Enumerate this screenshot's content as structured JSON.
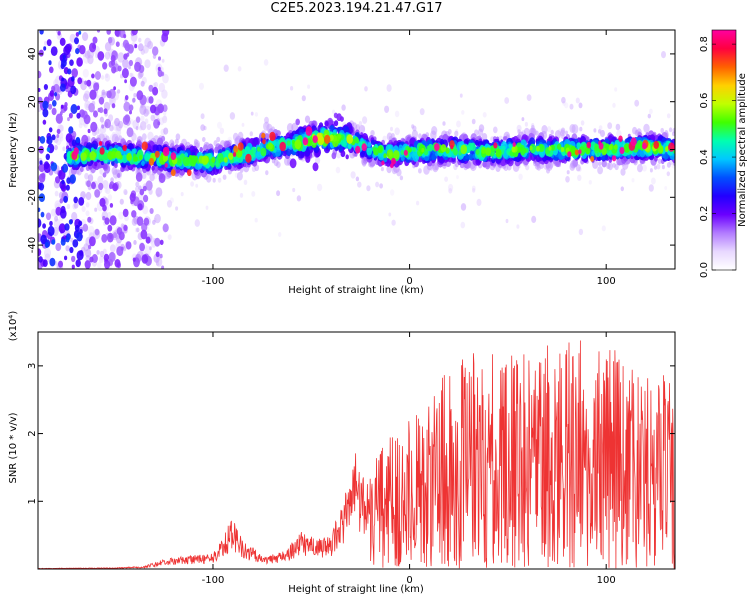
{
  "figure_title": "C2E5.2023.194.21.47.G17",
  "chart_data": [
    {
      "type": "heatmap",
      "panel": "top",
      "xlabel": "Height of straight line (km)",
      "ylabel": "Frequency (Hz)",
      "xlim": [
        -189,
        135
      ],
      "ylim": [
        -50,
        50
      ],
      "x_ticks": [
        -100,
        0,
        100
      ],
      "y_ticks": [
        -40,
        -20,
        0,
        20,
        40
      ],
      "colorbar": {
        "label": "Normalized spectral amplitude",
        "range": [
          0.0,
          0.85
        ],
        "ticks": [
          0.0,
          0.2,
          0.4,
          0.6,
          0.8
        ],
        "colormap": [
          "#ffffff",
          "#e8d8ff",
          "#b27cff",
          "#6a00ff",
          "#2200ff",
          "#0050ff",
          "#00c8ff",
          "#00ffb0",
          "#40ff00",
          "#c0ff00",
          "#ffd000",
          "#ff6000",
          "#ff0040",
          "#ff00a0"
        ]
      },
      "band_center_hz": [
        {
          "x": -185,
          "y": -5
        },
        {
          "x": -170,
          "y": -3
        },
        {
          "x": -160,
          "y": -2
        },
        {
          "x": -140,
          "y": -3
        },
        {
          "x": -120,
          "y": -4
        },
        {
          "x": -100,
          "y": -5
        },
        {
          "x": -90,
          "y": -3
        },
        {
          "x": -80,
          "y": -1
        },
        {
          "x": -70,
          "y": 1
        },
        {
          "x": -60,
          "y": 2
        },
        {
          "x": -50,
          "y": 4
        },
        {
          "x": -40,
          "y": 5
        },
        {
          "x": -30,
          "y": 4
        },
        {
          "x": -20,
          "y": 0
        },
        {
          "x": -10,
          "y": -2
        },
        {
          "x": 0,
          "y": -1
        },
        {
          "x": 20,
          "y": 0
        },
        {
          "x": 40,
          "y": -1
        },
        {
          "x": 60,
          "y": 0
        },
        {
          "x": 80,
          "y": 0
        },
        {
          "x": 100,
          "y": 0
        },
        {
          "x": 120,
          "y": 1
        },
        {
          "x": 135,
          "y": 0
        }
      ],
      "band_halfwidth_hz": 6,
      "peak_amplitude": 0.85
    },
    {
      "type": "line",
      "panel": "bottom",
      "xlabel": "Height of straight line (km)",
      "ylabel": "SNR (10 * v/v)",
      "y_multiplier_label": "(x10⁴)",
      "xlim": [
        -189,
        135
      ],
      "ylim": [
        0,
        3.5
      ],
      "x_ticks": [
        -100,
        0,
        100
      ],
      "y_ticks": [
        1,
        2,
        3
      ],
      "line_color": "#ee3333",
      "envelope": [
        {
          "x": -189,
          "y": 0.01
        },
        {
          "x": -150,
          "y": 0.02
        },
        {
          "x": -135,
          "y": 0.04
        },
        {
          "x": -125,
          "y": 0.15
        },
        {
          "x": -110,
          "y": 0.2
        },
        {
          "x": -100,
          "y": 0.25
        },
        {
          "x": -95,
          "y": 0.45
        },
        {
          "x": -90,
          "y": 0.8
        },
        {
          "x": -85,
          "y": 0.45
        },
        {
          "x": -75,
          "y": 0.2
        },
        {
          "x": -65,
          "y": 0.25
        },
        {
          "x": -55,
          "y": 0.55
        },
        {
          "x": -48,
          "y": 0.45
        },
        {
          "x": -40,
          "y": 0.5
        },
        {
          "x": -32,
          "y": 1.2
        },
        {
          "x": -28,
          "y": 1.75
        },
        {
          "x": -22,
          "y": 1.3
        },
        {
          "x": -15,
          "y": 1.9
        },
        {
          "x": -5,
          "y": 2.1
        },
        {
          "x": 0,
          "y": 2.4
        },
        {
          "x": 15,
          "y": 2.8
        },
        {
          "x": 30,
          "y": 3.2
        },
        {
          "x": 50,
          "y": 3.2
        },
        {
          "x": 70,
          "y": 3.3
        },
        {
          "x": 85,
          "y": 3.4
        },
        {
          "x": 100,
          "y": 3.3
        },
        {
          "x": 120,
          "y": 3.1
        },
        {
          "x": 135,
          "y": 2.9
        }
      ]
    }
  ]
}
